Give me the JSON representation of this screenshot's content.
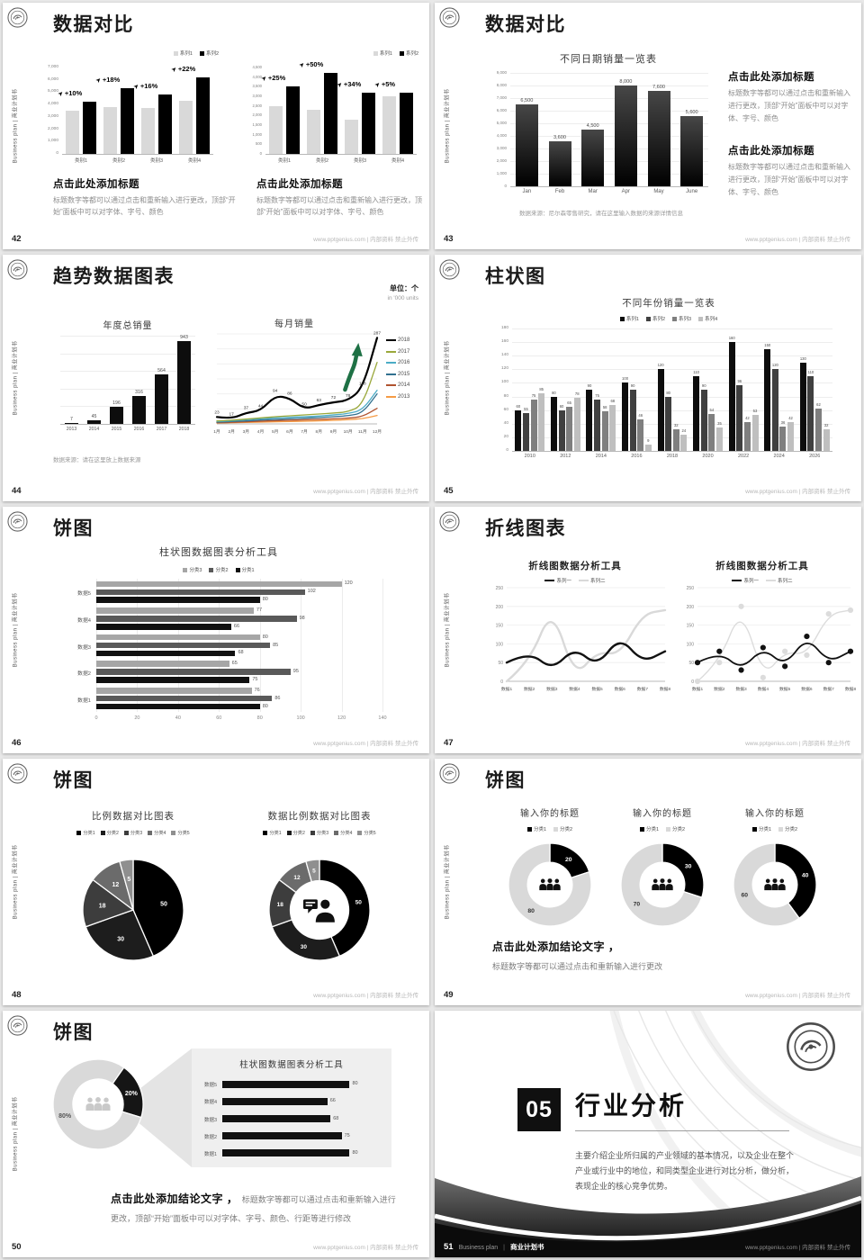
{
  "footer_site": "www.pptgenius.com | 内部资料 禁止外传",
  "sidebar_text": "Business plan | 商业计划书",
  "slides": [
    {
      "page": "42",
      "title": "数据对比",
      "charts": [
        {
          "type": "bar",
          "categories": [
            "类别1",
            "类别2",
            "类别3",
            "类别4"
          ],
          "ymax": 7000,
          "yticks": [
            "7,000",
            "6,000",
            "5,000",
            "4,000",
            "3,000",
            "2,000",
            "1,000",
            "0"
          ],
          "series": [
            {
              "name": "系列1",
              "color": "#d9d9d9",
              "values": [
                3500,
                3800,
                3700,
                4300
              ]
            },
            {
              "name": "系列2",
              "color": "#000000",
              "values": [
                4200,
                5300,
                4800,
                6200
              ]
            }
          ],
          "annotations": [
            "+10%",
            "+18%",
            "+16%",
            "+22%"
          ]
        },
        {
          "type": "bar",
          "categories": [
            "类别1",
            "类别2",
            "类别3",
            "类别4"
          ],
          "ymax": 4500,
          "yticks": [
            "4,500",
            "4,000",
            "3,500",
            "3,000",
            "2,500",
            "2,000",
            "1,500",
            "1,000",
            "500",
            "0"
          ],
          "series": [
            {
              "name": "系列1",
              "color": "#d9d9d9",
              "values": [
                2500,
                2300,
                1800,
                3000
              ]
            },
            {
              "name": "系列2",
              "color": "#000000",
              "values": [
                3500,
                4200,
                3200,
                3200
              ]
            }
          ],
          "annotations": [
            "+25%",
            "+50%",
            "+34%",
            "+5%"
          ]
        }
      ],
      "blocks": [
        {
          "heading": "点击此处添加标题",
          "body": "标题数字等都可以通过点击和重新输入进行更改，顶部“开始”面板中可以对字体、字号、颜色"
        },
        {
          "heading": "点击此处添加标题",
          "body": "标题数字等都可以通过点击和重新输入进行更改，顶部“开始”面板中可以对字体、字号、颜色"
        }
      ]
    },
    {
      "page": "43",
      "title": "数据对比",
      "chart": {
        "type": "bar",
        "title": "不同日期销量一览表",
        "grid": true,
        "categories": [
          "Jan",
          "Feb",
          "Mar",
          "Apr",
          "May",
          "June"
        ],
        "ymax": 9000,
        "yticks": [
          "9,000",
          "8,000",
          "7,000",
          "6,000",
          "5,000",
          "4,000",
          "3,000",
          "2,000",
          "1,000",
          "0"
        ],
        "series": [
          {
            "name": "销量",
            "color": "#111111",
            "values": [
              6500,
              3600,
              4500,
              8000,
              7600,
              5600
            ],
            "labels": [
              "6,500",
              "3,600",
              "4,500",
              "8,000",
              "7,600",
              "5,600"
            ]
          }
        ]
      },
      "source": "数据来源：尼尔森零售研究，请在这里输入数据的来源详情信息",
      "blocks": [
        {
          "heading": "点击此处添加标题",
          "body": "标题数字等都可以通过点击和重新输入进行更改，顶部“开始”面板中可以对字体、字号、颜色"
        },
        {
          "heading": "点击此处添加标题",
          "body": "标题数字等都可以通过点击和重新输入进行更改，顶部“开始”面板中可以对字体、字号、颜色"
        }
      ]
    },
    {
      "page": "44",
      "title": "趋势数据图表",
      "unit": {
        "line1": "单位：个",
        "line2": "in '000 units"
      },
      "charts": [
        {
          "type": "bar",
          "title": "年度总销量",
          "grid": true,
          "categories": [
            "2013",
            "2014",
            "2015",
            "2016",
            "2017",
            "2018"
          ],
          "ymax": 1000,
          "series": [
            {
              "name": "年度总销量",
              "color": "#0d0d0d",
              "values": [
                7,
                45,
                196,
                316,
                564,
                943
              ],
              "labels": [
                "7",
                "45",
                "196",
                "316",
                "564",
                "943"
              ]
            }
          ]
        },
        {
          "type": "line",
          "title": "每月销量",
          "ymax": 300,
          "x": [
            "1月",
            "2月",
            "3月",
            "4月",
            "5月",
            "6月",
            "7月",
            "8月",
            "9月",
            "10月",
            "11月",
            "12月"
          ],
          "arrow_color": "#1e7145",
          "series": [
            {
              "name": "2018",
              "color": "#000000",
              "width": 2.2,
              "values": [
                23,
                17,
                37,
                44,
                94,
                86,
                50,
                63,
                72,
                78,
                118,
                287
              ],
              "show_labels": true
            },
            {
              "name": "2017",
              "color": "#9aa83b",
              "width": 1.3,
              "values": [
                10,
                12,
                16,
                20,
                24,
                27,
                30,
                33,
                36,
                40,
                62,
                205
              ]
            },
            {
              "name": "2016",
              "color": "#4bacc6",
              "width": 1.3,
              "values": [
                8,
                10,
                14,
                17,
                20,
                22,
                24,
                26,
                30,
                34,
                46,
                112
              ]
            },
            {
              "name": "2015",
              "color": "#31708f",
              "width": 1.3,
              "values": [
                6,
                8,
                10,
                13,
                15,
                17,
                19,
                21,
                24,
                27,
                36,
                100
              ]
            },
            {
              "name": "2014",
              "color": "#b0532f",
              "width": 1.3,
              "values": [
                4,
                5,
                7,
                9,
                11,
                12,
                14,
                15,
                17,
                19,
                24,
                52
              ]
            },
            {
              "name": "2013",
              "color": "#f59b45",
              "width": 1.3,
              "values": [
                3,
                4,
                5,
                6,
                7,
                8,
                9,
                10,
                12,
                14,
                17,
                28
              ]
            }
          ]
        }
      ],
      "source": "数据来源：请在这里放上数据来源"
    },
    {
      "page": "45",
      "title": "柱状图",
      "chart": {
        "type": "bar",
        "title": "不同年份销量一览表",
        "grid": true,
        "categories": [
          "2010",
          "2012",
          "2014",
          "2016",
          "2018",
          "2020",
          "2022",
          "2024",
          "2026"
        ],
        "ymax": 180,
        "yticks": [
          "180",
          "160",
          "140",
          "120",
          "100",
          "80",
          "60",
          "40",
          "20",
          "0"
        ],
        "series": [
          {
            "name": "系列1",
            "color": "#0d0d0d",
            "values": [
              60,
              80,
              90,
              100,
              120,
              110,
              160,
              150,
              130
            ],
            "labels": true
          },
          {
            "name": "系列2",
            "color": "#404040",
            "values": [
              55,
              60,
              75,
              90,
              80,
              90,
              96,
              120,
              110
            ],
            "labels": true
          },
          {
            "name": "系列3",
            "color": "#7f7f7f",
            "values": [
              75,
              65,
              58,
              46,
              32,
              54,
              42,
              36,
              62
            ],
            "labels": true
          },
          {
            "name": "系列4",
            "color": "#bfbfbf",
            "values": [
              85,
              78,
              68,
              9,
              24,
              35,
              53,
              42,
              32
            ],
            "labels": true
          }
        ]
      }
    },
    {
      "page": "46",
      "title": "饼图",
      "chart": {
        "type": "hbar",
        "title": "柱状图数据图表分析工具",
        "xmax": 140,
        "xticks": [
          "0",
          "20",
          "40",
          "60",
          "80",
          "100",
          "120",
          "140"
        ],
        "categories": [
          "数据5",
          "数据4",
          "数据3",
          "数据2",
          "数据1"
        ],
        "series": [
          {
            "name": "分类3",
            "color": "#a6a6a6",
            "values": [
              120,
              77,
              80,
              65,
              76
            ]
          },
          {
            "name": "分类2",
            "color": "#595959",
            "values": [
              102,
              98,
              85,
              95,
              86
            ]
          },
          {
            "name": "分类1",
            "color": "#111111",
            "values": [
              80,
              66,
              68,
              75,
              80
            ]
          }
        ]
      }
    },
    {
      "page": "47",
      "title": "折线图表",
      "charts": [
        {
          "type": "line",
          "title": "折线图数据分析工具",
          "ymax": 250,
          "yticks": [
            "250",
            "200",
            "150",
            "100",
            "50",
            "0"
          ],
          "x": [
            "数据1",
            "数据2",
            "数据3",
            "数据4",
            "数据5",
            "数据6",
            "数据7",
            "数据8"
          ],
          "series": [
            {
              "name": "系列一",
              "color": "#111111",
              "width": 2.4,
              "values": [
                50,
                80,
                30,
                90,
                40,
                120,
                50,
                80
              ]
            },
            {
              "name": "系列二",
              "color": "#d9d9d9",
              "width": 2.4,
              "values": [
                0,
                50,
                200,
                10,
                80,
                70,
                180,
                190
              ]
            }
          ]
        },
        {
          "type": "line",
          "title": "折线图数据分析工具",
          "ymax": 250,
          "yticks": [
            "250",
            "200",
            "150",
            "100",
            "50",
            "0"
          ],
          "x": [
            "数据1",
            "数据2",
            "数据3",
            "数据4",
            "数据5",
            "数据6",
            "数据7",
            "数据8"
          ],
          "series": [
            {
              "name": "系列一",
              "color": "#111111",
              "width": 1.8,
              "values": [
                50,
                80,
                30,
                90,
                40,
                120,
                50,
                80
              ]
            },
            {
              "name": "系列二",
              "color": "#dcdcdc",
              "width": 1.4,
              "values": [
                0,
                50,
                200,
                10,
                80,
                70,
                180,
                190
              ]
            }
          ]
        }
      ]
    },
    {
      "page": "48",
      "title": "饼图",
      "charts": [
        {
          "type": "pie",
          "title": "比例数据对比图表",
          "legend": [
            "分类1",
            "分类2",
            "分类3",
            "分类4",
            "分类5"
          ],
          "values": [
            50,
            30,
            18,
            12,
            5
          ],
          "labels": [
            "50",
            "30",
            "18",
            "12",
            "5"
          ],
          "colors": [
            "#000000",
            "#1d1d1d",
            "#3d3d3d",
            "#6b6b6b",
            "#8f8f8f"
          ],
          "label_colors": [
            "#ffffff",
            "#ffffff",
            "#ffffff",
            "#ffffff",
            "#ffffff"
          ]
        },
        {
          "type": "donut",
          "title": "数据比例数据对比图表",
          "legend": [
            "分类1",
            "分类2",
            "分类3",
            "分类4",
            "分类5"
          ],
          "values": [
            50,
            30,
            18,
            12,
            5
          ],
          "labels": [
            "50",
            "30",
            "18",
            "12",
            "5"
          ],
          "colors": [
            "#000000",
            "#1d1d1d",
            "#3d3d3d",
            "#6b6b6b",
            "#8f8f8f"
          ],
          "label_colors": [
            "#ffffff",
            "#ffffff",
            "#ffffff",
            "#ffffff",
            "#ffffff"
          ],
          "icon": "person-chat"
        }
      ]
    },
    {
      "page": "49",
      "title": "饼图",
      "charts": [
        {
          "type": "donut",
          "title": "输入你的标题",
          "legend": [
            "分类1",
            "分类2"
          ],
          "values": [
            20,
            80
          ],
          "labels": [
            "20",
            "80"
          ],
          "colors": [
            "#000000",
            "#d9d9d9"
          ],
          "label_colors": [
            "#ffffff",
            "#333333"
          ],
          "icon": "people"
        },
        {
          "type": "donut",
          "title": "输入你的标题",
          "legend": [
            "分类1",
            "分类2"
          ],
          "values": [
            30,
            70
          ],
          "labels": [
            "30",
            "70"
          ],
          "colors": [
            "#000000",
            "#d9d9d9"
          ],
          "label_colors": [
            "#ffffff",
            "#333333"
          ],
          "icon": "people"
        },
        {
          "type": "donut",
          "title": "输入你的标题",
          "legend": [
            "分类1",
            "分类2"
          ],
          "values": [
            40,
            60
          ],
          "labels": [
            "40",
            "60"
          ],
          "colors": [
            "#000000",
            "#d9d9d9"
          ],
          "label_colors": [
            "#ffffff",
            "#333333"
          ],
          "icon": "people"
        }
      ],
      "conclusion": {
        "bold": "点击此处添加结论文字 ，",
        "body": "标题数字等都可以通过点击和重新输入进行更改"
      }
    },
    {
      "page": "50",
      "title": "饼图",
      "donut": {
        "type": "donut",
        "values": [
          20,
          80
        ],
        "labels": [
          "20%",
          "80%"
        ],
        "colors": [
          "#151515",
          "#d9d9d9"
        ],
        "label_colors": [
          "#ffffff",
          "#555555"
        ],
        "icon": "people"
      },
      "panel": {
        "title": "柱状图数据图表分析工具",
        "categories": [
          "数据5",
          "数据4",
          "数据3",
          "数据2",
          "数据1"
        ],
        "values": [
          80,
          66,
          68,
          75,
          80
        ],
        "color": "#111111"
      },
      "conclusion": {
        "bold": "点击此处添加结论文字 ，",
        "body1": "标题数字等都可以通过点击和重新输入进行",
        "body2": "更改，顶部“开始”面板中可以对字体、字号、颜色、行距等进行修改"
      }
    },
    {
      "page": "51",
      "number": "05",
      "title": "行业分析",
      "body": "主要介绍企业所归属的产业领域的基本情况，以及企业在整个产业或行业中的地位，和同类型企业进行对比分析，做分析，表现企业的核心竞争优势。",
      "footer_left": {
        "page": "51",
        "brand": "Business plan",
        "sep": "|",
        "book": "商业计划书"
      }
    }
  ]
}
